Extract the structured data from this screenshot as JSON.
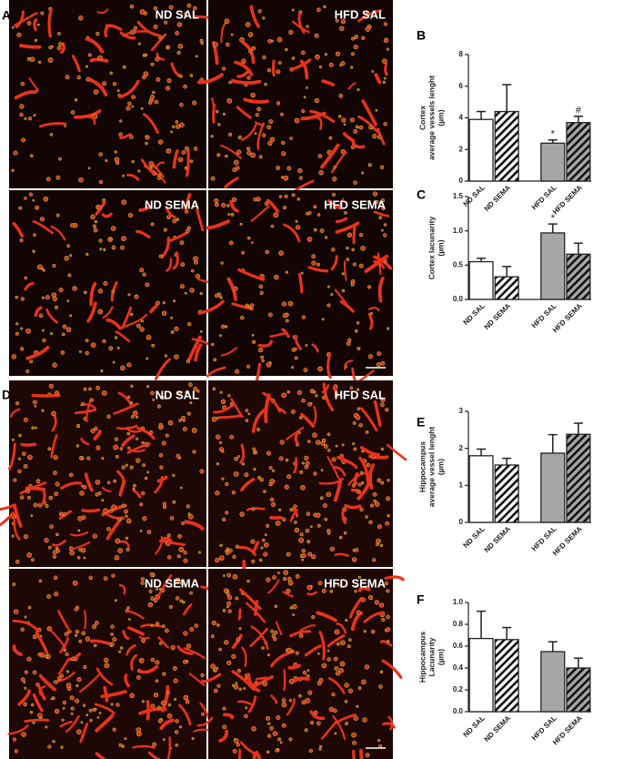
{
  "figure": {
    "panels": [
      "A",
      "B",
      "C",
      "D",
      "E",
      "F"
    ],
    "image_labels": [
      "ND SAL",
      "HFD  SAL",
      "ND SEMA",
      "HFD  SEMA",
      "ND SAL",
      "HFD  SAL",
      "ND SEMA",
      "HFD  SEMA"
    ]
  },
  "chart_data": [
    {
      "type": "bar",
      "ylabel": [
        "Cortex",
        "average vessels lenght",
        "(µm)"
      ],
      "categories": [
        "ND SAL",
        "ND SEMA",
        "HFD SAL",
        "HFD SEMA"
      ],
      "values": [
        3.9,
        4.4,
        2.4,
        3.7
      ],
      "errors": [
        0.5,
        1.7,
        0.2,
        0.4
      ],
      "colors": [
        "#ffffff",
        "#ffffff",
        "#a6a6a6",
        "#a6a6a6"
      ],
      "hatch": [
        false,
        true,
        false,
        true
      ],
      "ylim": [
        0,
        8
      ],
      "yticks": [
        0,
        2,
        4,
        6,
        8
      ],
      "annotations": [
        {
          "label": "*",
          "category": "HFD SAL"
        },
        {
          "label": "#",
          "category": "HFD SEMA"
        }
      ]
    },
    {
      "type": "bar",
      "ylabel": [
        "Cortex lacunarity",
        "(µm)"
      ],
      "categories": [
        "ND SAL",
        "ND SEMA",
        "HFD SAL",
        "HFD SEMA"
      ],
      "values": [
        0.55,
        0.33,
        0.97,
        0.66
      ],
      "errors": [
        0.05,
        0.15,
        0.13,
        0.16
      ],
      "colors": [
        "#ffffff",
        "#ffffff",
        "#a6a6a6",
        "#a6a6a6"
      ],
      "hatch": [
        false,
        true,
        false,
        true
      ],
      "ylim": [
        0,
        1.5
      ],
      "yticks": [
        {
          "value": 0,
          "label": "0.0"
        },
        0.5,
        {
          "value": 1,
          "label": "1.0"
        },
        1.5
      ],
      "annotations": [
        {
          "label": "*",
          "category": "HFD SAL"
        }
      ]
    },
    {
      "type": "bar",
      "ylabel": [
        "Hippocampus",
        "average vessel lenght",
        "(µm)"
      ],
      "categories": [
        "ND SAL",
        "ND SEMA",
        "HFD SAL",
        "HFD SEMA"
      ],
      "values": [
        1.8,
        1.55,
        1.87,
        2.38
      ],
      "errors": [
        0.18,
        0.18,
        0.5,
        0.3
      ],
      "colors": [
        "#ffffff",
        "#ffffff",
        "#a6a6a6",
        "#a6a6a6"
      ],
      "hatch": [
        false,
        true,
        false,
        true
      ],
      "ylim": [
        0,
        3
      ],
      "yticks": [
        0,
        1,
        2,
        3
      ],
      "annotations": []
    },
    {
      "type": "bar",
      "ylabel": [
        "Hippocampus",
        "Lacunarity",
        "(µm)"
      ],
      "categories": [
        "ND SAL",
        "ND SEMA",
        "HFD SAL",
        "HFD SEMA"
      ],
      "values": [
        0.67,
        0.66,
        0.55,
        0.4
      ],
      "errors": [
        0.25,
        0.11,
        0.09,
        0.09
      ],
      "colors": [
        "#ffffff",
        "#ffffff",
        "#a6a6a6",
        "#a6a6a6"
      ],
      "hatch": [
        false,
        true,
        false,
        true
      ],
      "ylim": [
        0,
        1
      ],
      "yticks": [
        {
          "value": 0,
          "label": "0.0"
        },
        0.2,
        0.4,
        0.6,
        0.8,
        {
          "value": 1,
          "label": "1.0"
        }
      ],
      "annotations": []
    }
  ]
}
